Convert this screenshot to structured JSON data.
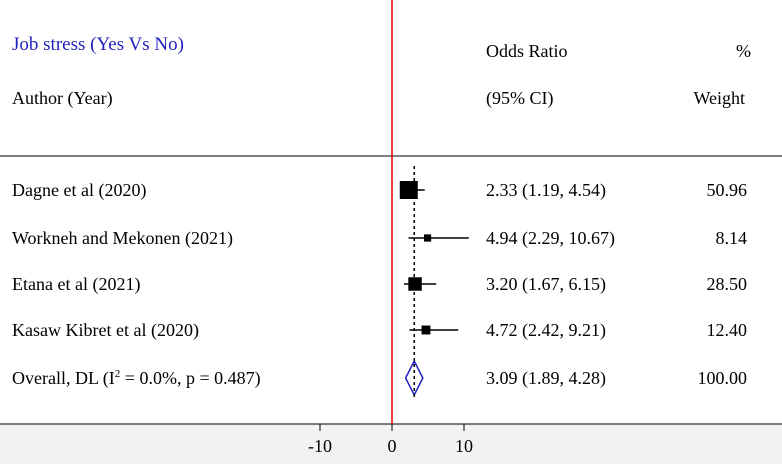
{
  "header": {
    "title": "Job stress (Yes Vs No)",
    "col_author": "Author (Year)",
    "col_or_line1": "Odds Ratio",
    "col_or_line2": "(95% CI)",
    "col_weight_line1": "%",
    "col_weight_line2": "Weight"
  },
  "colors": {
    "title": "#1f1fbf",
    "null_line": "#e00000",
    "diamond": "#1f1fbf",
    "marker": "#000000"
  },
  "chart_data": {
    "type": "forest",
    "title": "Job stress (Yes Vs No)",
    "x_ticks": [
      -10,
      0,
      10
    ],
    "xlim": [
      -17,
      17
    ],
    "null_value": 0,
    "overall_reference": 3.09,
    "studies": [
      {
        "label": "Dagne et al (2020)",
        "or": 2.33,
        "lo": 1.19,
        "hi": 4.54,
        "ci_text": "2.33 (1.19, 4.54)",
        "weight": 50.96,
        "weight_text": "50.96"
      },
      {
        "label": "Workneh and Mekonen (2021)",
        "or": 4.94,
        "lo": 2.29,
        "hi": 10.67,
        "ci_text": "4.94 (2.29, 10.67)",
        "weight": 8.14,
        "weight_text": "8.14"
      },
      {
        "label": "Etana et al (2021)",
        "or": 3.2,
        "lo": 1.67,
        "hi": 6.15,
        "ci_text": "3.20 (1.67, 6.15)",
        "weight": 28.5,
        "weight_text": "28.50"
      },
      {
        "label": "Kasaw Kibret et al (2020)",
        "or": 4.72,
        "lo": 2.42,
        "hi": 9.21,
        "ci_text": "4.72 (2.42, 9.21)",
        "weight": 12.4,
        "weight_text": "12.40"
      }
    ],
    "overall": {
      "label_prefix": "Overall, DL (I",
      "label_sup": "2",
      "label_suffix": " = 0.0%, p = 0.487)",
      "or": 3.09,
      "lo": 1.89,
      "hi": 4.28,
      "ci_text": "3.09 (1.89, 4.28)",
      "weight_text": "100.00"
    }
  }
}
